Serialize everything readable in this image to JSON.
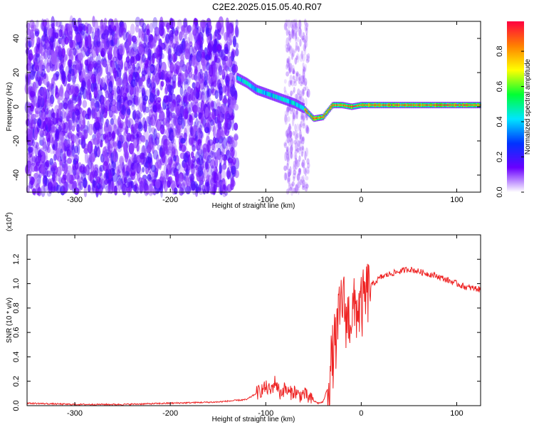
{
  "figure": {
    "title": "C2E2.2025.015.05.40.R07"
  },
  "chart_data": [
    {
      "type": "heatmap",
      "name": "spectrogram",
      "xlabel": "Height of straight line (km)",
      "ylabel": "Frequency (Hz)",
      "xlim": [
        -350,
        125
      ],
      "ylim": [
        -50,
        50
      ],
      "x_ticks": [
        -300,
        -200,
        -100,
        0,
        100
      ],
      "x_tick_labels": [
        "-300",
        "-200",
        "-100",
        "0",
        "100"
      ],
      "y_ticks": [
        -40,
        -20,
        0,
        20,
        40
      ],
      "y_tick_labels": [
        "-40",
        "-20",
        "0",
        "20",
        "40"
      ],
      "grid": false,
      "colorbar": {
        "label": "Normalized spectral amplitude",
        "range": [
          0,
          0.97
        ],
        "ticks": [
          0,
          0.2,
          0.4,
          0.6,
          0.8
        ],
        "tick_labels": [
          "0.0",
          "0.2",
          "0.4",
          "0.6",
          "0.8"
        ],
        "colormap": [
          "#ffffff",
          "#6a00ff",
          "#0033ff",
          "#00e5ff",
          "#00ff33",
          "#ffff00",
          "#ff8000",
          "#ff0040"
        ]
      },
      "features": {
        "noise_region_x": [
          -350,
          -130
        ],
        "secondary_noise_band_x": [
          -80,
          -55
        ],
        "signal_trace": {
          "x": [
            -130,
            -120,
            -110,
            -100,
            -90,
            -80,
            -70,
            -60,
            -50,
            -40,
            -30,
            -20,
            -10,
            0,
            20,
            40,
            60,
            80,
            100,
            125
          ],
          "y": [
            17,
            14,
            10,
            8,
            6,
            4,
            2,
            -1,
            -7,
            -6,
            1,
            1,
            0,
            1,
            1,
            1,
            1,
            1,
            1,
            1
          ]
        }
      }
    },
    {
      "type": "line",
      "name": "snr",
      "xlabel": "Height of straight line (km)",
      "ylabel": "SNR (10 * v/v)",
      "y_multiplier_label": "(x10",
      "y_multiplier_exp": "4",
      "y_multiplier_close": ")",
      "xlim": [
        -350,
        125
      ],
      "ylim": [
        0,
        1.4
      ],
      "x_ticks": [
        -300,
        -200,
        -100,
        0,
        100
      ],
      "x_tick_labels": [
        "-300",
        "-200",
        "-100",
        "0",
        "100"
      ],
      "y_ticks": [
        0,
        0.2,
        0.4,
        0.6,
        0.8,
        1.0,
        1.2
      ],
      "y_tick_labels": [
        "0.0",
        "0.2",
        "0.4",
        "0.6",
        "0.8",
        "1.0",
        "1.2"
      ],
      "grid": false,
      "color": "#ee2222",
      "series": [
        {
          "x": [
            -350,
            -300,
            -250,
            -200,
            -150,
            -120,
            -110,
            -100,
            -95,
            -90,
            -85,
            -80,
            -75,
            -70,
            -65,
            -60,
            -55,
            -50,
            -45,
            -40,
            -35,
            -30,
            -25,
            -20,
            -15,
            -10,
            -5,
            0,
            5,
            10,
            20,
            30,
            40,
            50,
            60,
            70,
            80,
            90,
            100,
            110,
            120,
            125
          ],
          "y": [
            0.02,
            0.01,
            0.01,
            0.02,
            0.03,
            0.05,
            0.1,
            0.15,
            0.12,
            0.2,
            0.1,
            0.14,
            0.1,
            0.12,
            0.08,
            0.1,
            0.06,
            0.04,
            0.02,
            0.03,
            0.15,
            0.4,
            0.6,
            0.9,
            0.7,
            0.75,
            0.8,
            0.8,
            0.9,
            0.98,
            1.05,
            1.08,
            1.1,
            1.12,
            1.1,
            1.08,
            1.06,
            1.03,
            1.0,
            0.97,
            0.96,
            0.95
          ]
        }
      ]
    }
  ]
}
